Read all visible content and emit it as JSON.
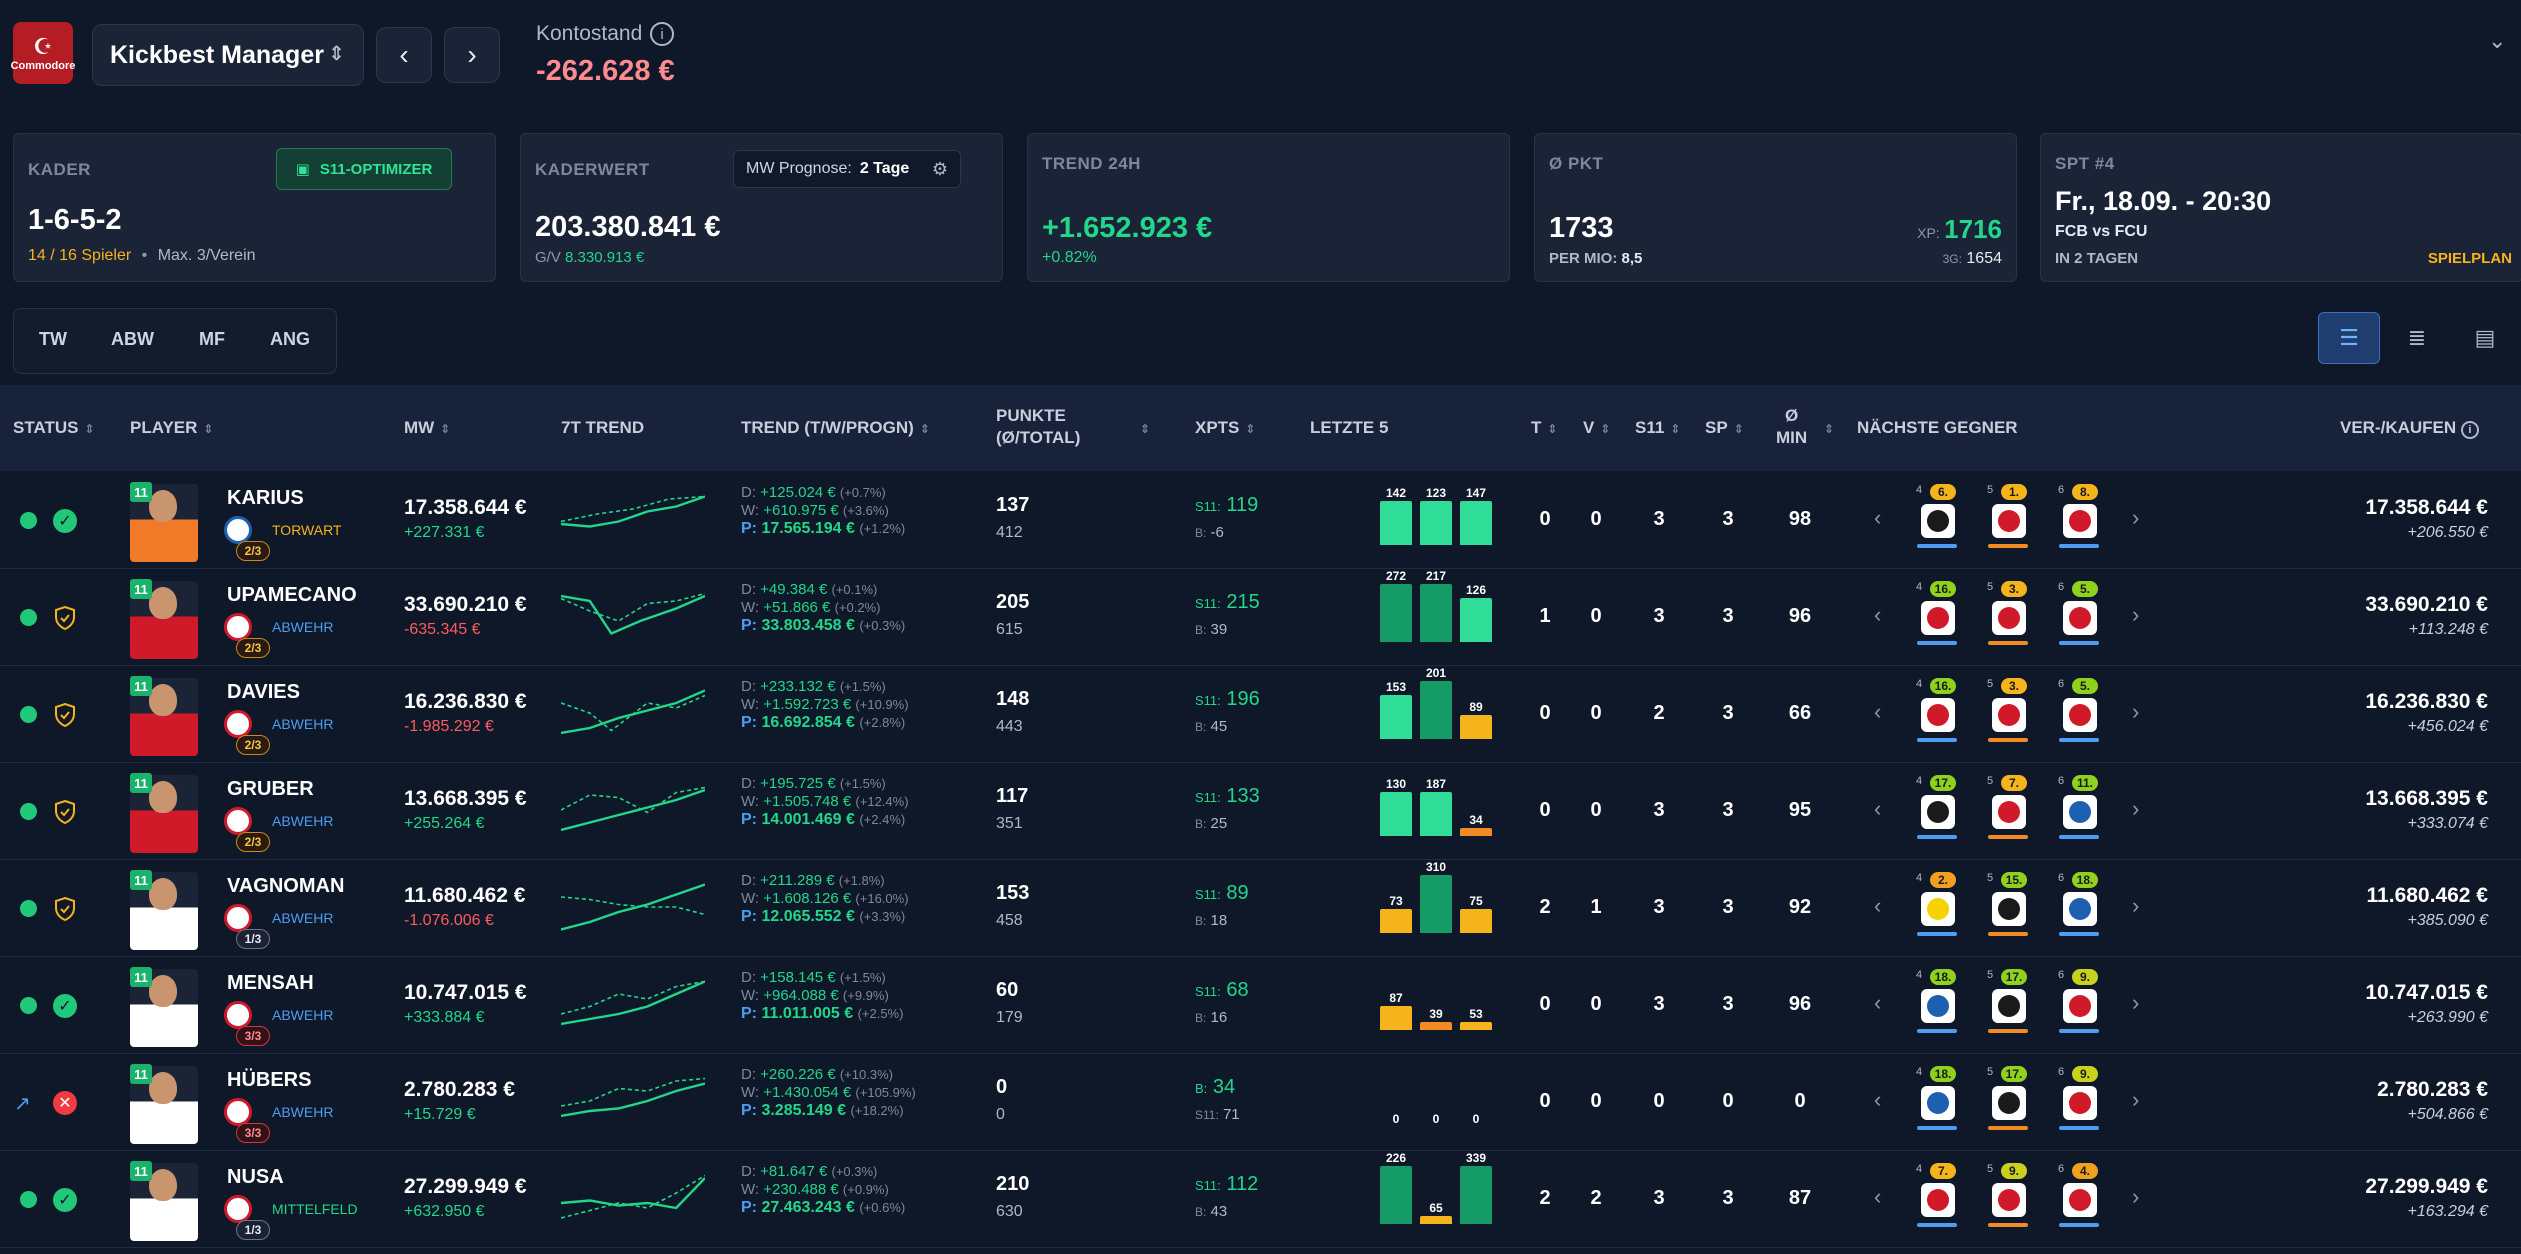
{
  "header": {
    "logo_text": "Commodore",
    "manager_name": "Kickbest Manager",
    "balance_label": "Kontostand",
    "balance_value": "-262.628 €"
  },
  "cards": {
    "kader": {
      "label": "KADER",
      "optimizer_label": "S11-OPTIMIZER",
      "formation": "1-6-5-2",
      "players": "14 / 16 Spieler",
      "sep": "•",
      "max": "Max. 3/Verein"
    },
    "kaderwert": {
      "label": "KADERWERT",
      "prognose_label": "MW Prognose:",
      "prognose_value": "2 Tage",
      "value": "203.380.841 €",
      "gv_label": "G/V",
      "gv_value": "8.330.913 €"
    },
    "trend": {
      "label": "TREND 24H",
      "value": "+1.652.923 €",
      "pct": "+0.82%"
    },
    "pkt": {
      "label": "Ø PKT",
      "value": "1733",
      "xp_label": "XP:",
      "xp_value": "1716",
      "per_mio_label": "PER MIO:",
      "per_mio_value": "8,5",
      "g3_label": "3G:",
      "g3_value": "1654"
    },
    "spt": {
      "label": "SPT #4",
      "date": "Fr., 18.09. - 20:30",
      "match": "FCB vs FCU",
      "in": "IN 2 TAGEN",
      "link": "SPIELPLAN"
    }
  },
  "filters": [
    "TW",
    "ABW",
    "MF",
    "ANG"
  ],
  "columns": {
    "status": "STATUS",
    "player": "PLAYER",
    "mw": "MW",
    "trend7": "7T TREND",
    "trend": "TREND (T/W/PROGN)",
    "punkte1": "PUNKTE",
    "punkte2": "(Ø/TOTAL)",
    "xpts": "XPTS",
    "letzte": "LETZTE 5",
    "t": "T",
    "v": "V",
    "s11": "S11",
    "sp": "SP",
    "min1": "Ø",
    "min2": "MIN",
    "gegner": "NÄCHSTE GEGNER",
    "vk": "VER-/KAUFEN"
  },
  "rows": [
    {
      "name": "KARIUS",
      "pos": "TORWART",
      "frac": "2/3",
      "mw": "17.358.644 €",
      "mwd": "+227.331 €",
      "d": "+125.024 €",
      "dp": "(+0.7%)",
      "w": "+610.975 €",
      "wp": "(+3.6%)",
      "p": "17.565.194 €",
      "pp": "(+1.2%)",
      "pts": "137",
      "pts2": "412",
      "xpk1": "S11:",
      "xp1": "119",
      "xpk2": "B:",
      "xp2": "-6",
      "last": [
        142,
        123,
        147
      ],
      "t": "0",
      "v": "0",
      "s11": "3",
      "sp": "3",
      "min": "98",
      "vk1": "17.358.644 €",
      "vk2": "+206.550 €",
      "opp": [
        {
          "md": "4",
          "rk": "6."
        },
        {
          "md": "5",
          "rk": "1."
        },
        {
          "md": "6",
          "rk": "8."
        }
      ]
    },
    {
      "name": "UPAMECANO",
      "pos": "ABWEHR",
      "frac": "2/3",
      "mw": "33.690.210 €",
      "mwd": "-635.345 €",
      "d": "+49.384 €",
      "dp": "(+0.1%)",
      "w": "+51.866 €",
      "wp": "(+0.2%)",
      "p": "33.803.458 €",
      "pp": "(+0.3%)",
      "pts": "205",
      "pts2": "615",
      "xpk1": "S11:",
      "xp1": "215",
      "xpk2": "B:",
      "xp2": "39",
      "last": [
        272,
        217,
        126
      ],
      "t": "1",
      "v": "0",
      "s11": "3",
      "sp": "3",
      "min": "96",
      "vk1": "33.690.210 €",
      "vk2": "+113.248 €",
      "opp": [
        {
          "md": "4",
          "rk": "16."
        },
        {
          "md": "5",
          "rk": "3."
        },
        {
          "md": "6",
          "rk": "5."
        }
      ]
    },
    {
      "name": "DAVIES",
      "pos": "ABWEHR",
      "frac": "2/3",
      "mw": "16.236.830 €",
      "mwd": "-1.985.292 €",
      "d": "+233.132 €",
      "dp": "(+1.5%)",
      "w": "+1.592.723 €",
      "wp": "(+10.9%)",
      "p": "16.692.854 €",
      "pp": "(+2.8%)",
      "pts": "148",
      "pts2": "443",
      "xpk1": "S11:",
      "xp1": "196",
      "xpk2": "B:",
      "xp2": "45",
      "last": [
        153,
        201,
        89
      ],
      "t": "0",
      "v": "0",
      "s11": "2",
      "sp": "3",
      "min": "66",
      "vk1": "16.236.830 €",
      "vk2": "+456.024 €",
      "opp": [
        {
          "md": "4",
          "rk": "16."
        },
        {
          "md": "5",
          "rk": "3."
        },
        {
          "md": "6",
          "rk": "5."
        }
      ]
    },
    {
      "name": "GRUBER",
      "pos": "ABWEHR",
      "frac": "2/3",
      "mw": "13.668.395 €",
      "mwd": "+255.264 €",
      "d": "+195.725 €",
      "dp": "(+1.5%)",
      "w": "+1.505.748 €",
      "wp": "(+12.4%)",
      "p": "14.001.469 €",
      "pp": "(+2.4%)",
      "pts": "117",
      "pts2": "351",
      "xpk1": "S11:",
      "xp1": "133",
      "xpk2": "B:",
      "xp2": "25",
      "last": [
        130,
        187,
        34
      ],
      "t": "0",
      "v": "0",
      "s11": "3",
      "sp": "3",
      "min": "95",
      "vk1": "13.668.395 €",
      "vk2": "+333.074 €",
      "opp": [
        {
          "md": "4",
          "rk": "17."
        },
        {
          "md": "5",
          "rk": "7."
        },
        {
          "md": "6",
          "rk": "11."
        }
      ]
    },
    {
      "name": "VAGNOMAN",
      "pos": "ABWEHR",
      "frac": "1/3",
      "mw": "11.680.462 €",
      "mwd": "-1.076.006 €",
      "d": "+211.289 €",
      "dp": "(+1.8%)",
      "w": "+1.608.126 €",
      "wp": "(+16.0%)",
      "p": "12.065.552 €",
      "pp": "(+3.3%)",
      "pts": "153",
      "pts2": "458",
      "xpk1": "S11:",
      "xp1": "89",
      "xpk2": "B:",
      "xp2": "18",
      "last": [
        73,
        310,
        75
      ],
      "t": "2",
      "v": "1",
      "s11": "3",
      "sp": "3",
      "min": "92",
      "vk1": "11.680.462 €",
      "vk2": "+385.090 €",
      "opp": [
        {
          "md": "4",
          "rk": "2."
        },
        {
          "md": "5",
          "rk": "15."
        },
        {
          "md": "6",
          "rk": "18."
        }
      ]
    },
    {
      "name": "MENSAH",
      "pos": "ABWEHR",
      "frac": "3/3",
      "mw": "10.747.015 €",
      "mwd": "+333.884 €",
      "d": "+158.145 €",
      "dp": "(+1.5%)",
      "w": "+964.088 €",
      "wp": "(+9.9%)",
      "p": "11.011.005 €",
      "pp": "(+2.5%)",
      "pts": "60",
      "pts2": "179",
      "xpk1": "S11:",
      "xp1": "68",
      "xpk2": "B:",
      "xp2": "16",
      "last": [
        87,
        39,
        53
      ],
      "t": "0",
      "v": "0",
      "s11": "3",
      "sp": "3",
      "min": "96",
      "vk1": "10.747.015 €",
      "vk2": "+263.990 €",
      "opp": [
        {
          "md": "4",
          "rk": "18."
        },
        {
          "md": "5",
          "rk": "17."
        },
        {
          "md": "6",
          "rk": "9."
        }
      ]
    },
    {
      "name": "HÜBERS",
      "pos": "ABWEHR",
      "frac": "3/3",
      "mw": "2.780.283 €",
      "mwd": "+15.729 €",
      "d": "+260.226 €",
      "dp": "(+10.3%)",
      "w": "+1.430.054 €",
      "wp": "(+105.9%)",
      "p": "3.285.149 €",
      "pp": "(+18.2%)",
      "pts": "0",
      "pts2": "0",
      "xpk1": "B:",
      "xp1": "34",
      "xpk2": "S11:",
      "xp2": "71",
      "last": [
        0,
        0,
        0
      ],
      "t": "0",
      "v": "0",
      "s11": "0",
      "sp": "0",
      "min": "0",
      "vk1": "2.780.283 €",
      "vk2": "+504.866 €",
      "opp": [
        {
          "md": "4",
          "rk": "18."
        },
        {
          "md": "5",
          "rk": "17."
        },
        {
          "md": "6",
          "rk": "9."
        }
      ]
    },
    {
      "name": "NUSA",
      "pos": "MITTELFELD",
      "frac": "1/3",
      "mw": "27.299.949 €",
      "mwd": "+632.950 €",
      "d": "+81.647 €",
      "dp": "(+0.3%)",
      "w": "+230.488 €",
      "wp": "(+0.9%)",
      "p": "27.463.243 €",
      "pp": "(+0.6%)",
      "pts": "210",
      "pts2": "630",
      "xpk1": "S11:",
      "xp1": "112",
      "xpk2": "B:",
      "xp2": "43",
      "last": [
        226,
        65,
        339
      ],
      "t": "2",
      "v": "2",
      "s11": "3",
      "sp": "3",
      "min": "87",
      "vk1": "27.299.949 €",
      "vk2": "+163.294 €",
      "opp": [
        {
          "md": "4",
          "rk": "7."
        },
        {
          "md": "5",
          "rk": "9."
        },
        {
          "md": "6",
          "rk": "4."
        }
      ]
    }
  ],
  "labels": {
    "s11": "11",
    "d": "D:",
    "w": "W:",
    "p": "P:"
  }
}
